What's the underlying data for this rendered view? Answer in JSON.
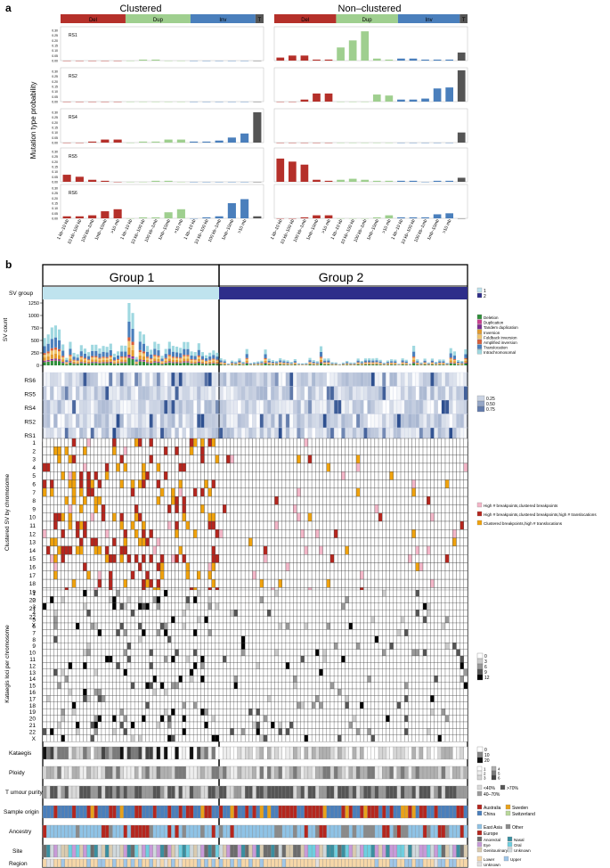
{
  "panel_a": {
    "letter": "a",
    "group_titles": [
      "Clustered",
      "Non–clustered"
    ],
    "type_bands": [
      {
        "label": "Del",
        "color": "#b5302a"
      },
      {
        "label": "Dup",
        "color": "#9fcf8f"
      },
      {
        "label": "Inv",
        "color": "#4a7fbc"
      },
      {
        "label": "T",
        "color": "#555555"
      }
    ],
    "ylabel": "Mutation type probability",
    "size_bins": [
      "1 kb–10 kb",
      "10 kb–100 kb",
      "100 kb–1mb",
      "1mb–10mb",
      ">10 mb"
    ],
    "yticks": [
      "0.00",
      "0.05",
      "0.10",
      "0.15",
      "0.20",
      "0.25",
      "0.30"
    ]
  },
  "chart_data": [
    {
      "type": "bar",
      "title": "",
      "ylabel": "Mutation type probability",
      "ylim": [
        0,
        0.3
      ],
      "categories": [
        "Clustered Del 1 kb–10 kb",
        "Clustered Del 10 kb–100 kb",
        "Clustered Del 100 kb–1mb",
        "Clustered Del 1mb–10mb",
        "Clustered Del >10 mb",
        "Clustered Dup 1 kb–10 kb",
        "Clustered Dup 10 kb–100 kb",
        "Clustered Dup 100 kb–1mb",
        "Clustered Dup 1mb–10mb",
        "Clustered Dup >10 mb",
        "Clustered Inv 1 kb–10 kb",
        "Clustered Inv 10 kb–100 kb",
        "Clustered Inv 100 kb–1mb",
        "Clustered Inv 1mb–10mb",
        "Clustered Inv >10 mb",
        "Clustered T",
        "Non–clustered Del 1 kb–10 kb",
        "Non–clustered Del 10 kb–100 kb",
        "Non–clustered Del 100 kb–1mb",
        "Non–clustered Del 1mb–10mb",
        "Non–clustered Del >10 mb",
        "Non–clustered Dup 1 kb–10 kb",
        "Non–clustered Dup 10 kb–100 kb",
        "Non–clustered Dup 100 kb–1mb",
        "Non–clustered Dup 1mb–10mb",
        "Non–clustered Dup >10 mb",
        "Non–clustered Inv 1 kb–10 kb",
        "Non–clustered Inv 10 kb–100 kb",
        "Non–clustered Inv 100 kb–1mb",
        "Non–clustered Inv 1mb–10mb",
        "Non–clustered Inv >10 mb",
        "Non–clustered T"
      ],
      "series": [
        {
          "name": "RS1",
          "values": [
            0,
            0,
            0,
            0,
            0,
            0,
            0.01,
            0.01,
            0,
            0,
            0,
            0,
            0,
            0,
            0,
            0,
            0.03,
            0.05,
            0.05,
            0.01,
            0.01,
            0.13,
            0.2,
            0.29,
            0.02,
            0.01,
            0.02,
            0.02,
            0.01,
            0.01,
            0.01,
            0.08
          ]
        },
        {
          "name": "RS2",
          "values": [
            0,
            0,
            0,
            0,
            0,
            0,
            0,
            0,
            0,
            0,
            0,
            0,
            0,
            0,
            0,
            0,
            0,
            0,
            0.02,
            0.08,
            0.08,
            0,
            0,
            0,
            0.07,
            0.06,
            0.02,
            0.02,
            0.03,
            0.13,
            0.14,
            0.31
          ]
        },
        {
          "name": "RS4",
          "values": [
            0,
            0,
            0.01,
            0.03,
            0.03,
            0,
            0.01,
            0.01,
            0.03,
            0.03,
            0.01,
            0.01,
            0.02,
            0.05,
            0.09,
            0.3,
            0,
            0,
            0,
            0,
            0,
            0,
            0,
            0,
            0,
            0,
            0,
            0,
            0,
            0,
            0,
            0.1
          ]
        },
        {
          "name": "RS5",
          "values": [
            0.07,
            0.05,
            0.02,
            0.01,
            0,
            0,
            0,
            0.01,
            0.01,
            0,
            0,
            0,
            0,
            0,
            0,
            0,
            0.23,
            0.2,
            0.17,
            0.02,
            0.01,
            0.02,
            0.03,
            0.02,
            0.01,
            0.01,
            0.01,
            0.01,
            0,
            0.01,
            0.01,
            0.04
          ]
        },
        {
          "name": "RS6",
          "values": [
            0.02,
            0.02,
            0.03,
            0.07,
            0.09,
            0,
            0.01,
            0.01,
            0.06,
            0.09,
            0,
            0.01,
            0.02,
            0.15,
            0.19,
            0.02,
            0,
            0,
            0.01,
            0.03,
            0.03,
            0,
            0,
            0,
            0.01,
            0.03,
            0.01,
            0.01,
            0.01,
            0.04,
            0.05,
            0
          ]
        }
      ]
    }
  ],
  "panel_b": {
    "letter": "b",
    "group_labels": [
      "Group 1",
      "Group 2"
    ],
    "row_labels": {
      "sv_group": "SV group",
      "sv_count": "SV count",
      "clustered_sv": "Clustered SV by chromosome",
      "kataegis_loci": "Kataegis loci per chromosome",
      "kataegis": "Kataegis",
      "ploidy": "Ploidy",
      "purity": "T umour purity",
      "sample_origin": "Sample origin",
      "ancestry": "Ancestry",
      "site": "Site",
      "region": "Region"
    },
    "sv_count_ticks": [
      "0",
      "250",
      "500",
      "750",
      "1000",
      "1250"
    ],
    "signatures": [
      "RS6",
      "RS5",
      "RS4",
      "RS2",
      "RS1"
    ],
    "chromosomes": [
      "1",
      "2",
      "3",
      "4",
      "5",
      "6",
      "7",
      "8",
      "9",
      "10",
      "11",
      "12",
      "13",
      "14",
      "15",
      "16",
      "17",
      "18",
      "19",
      "20",
      "21",
      "22",
      "X"
    ],
    "legends": {
      "sv_group": [
        {
          "label": "1",
          "color": "#bfe3ee"
        },
        {
          "label": "2",
          "color": "#2e2e8a"
        }
      ],
      "sv_types": [
        {
          "label": "Deletion",
          "color": "#2f8f3a"
        },
        {
          "label": "Duplication",
          "color": "#c93f8f"
        },
        {
          "label": "Tandem duplication",
          "color": "#7b2a8f"
        },
        {
          "label": "Inversion",
          "color": "#e39b2e"
        },
        {
          "label": "Foldback inversion",
          "color": "#f0c36a"
        },
        {
          "label": "Amplified inversion",
          "color": "#d95f3a"
        },
        {
          "label": "Translocation",
          "color": "#4a7fbc"
        },
        {
          "label": "Intrachromosomal",
          "color": "#9fd8e0"
        }
      ],
      "signature_scale": [
        "0.25",
        "0.50",
        "0.75"
      ],
      "clustered": [
        {
          "label": "High # breakpoints,clustered breakpoints",
          "color": "#f4b6c8"
        },
        {
          "label": "High # breakpoints,clustered breakpoints,high # translocations",
          "color": "#b5261e"
        },
        {
          "label": "Clustered breakpoints,high # translocations",
          "color": "#f0a20c"
        }
      ],
      "kataegis_loci_scale": [
        "0",
        "3",
        "6",
        "9",
        "12"
      ],
      "kataegis_scale": [
        "0",
        "10",
        "20"
      ],
      "ploidy": [
        "1",
        "2",
        "3",
        "4",
        "5",
        "6"
      ],
      "purity": [
        {
          "label": "<40%",
          "color": "#d9d9d9"
        },
        {
          "label": ">70%",
          "color": "#555555"
        },
        {
          "label": "40–70%",
          "color": "#9a9a9a"
        }
      ],
      "sample_origin": [
        {
          "label": "Australia",
          "color": "#b5261e"
        },
        {
          "label": "Sweden",
          "color": "#e8a21a"
        },
        {
          "label": "China",
          "color": "#4a7fbc"
        },
        {
          "label": "Switzerland",
          "color": "#b9d89a"
        }
      ],
      "ancestry": [
        {
          "label": "East Asia",
          "color": "#8fc3e6"
        },
        {
          "label": "Other",
          "color": "#8a8a8a"
        },
        {
          "label": "Europe",
          "color": "#b5261e"
        }
      ],
      "site": [
        {
          "label": "Anorectal",
          "color": "#6c6c6c"
        },
        {
          "label": "Nasal",
          "color": "#3a8fa0"
        },
        {
          "label": "Eye",
          "color": "#c89ad8"
        },
        {
          "label": "Oral",
          "color": "#6ecfe0"
        },
        {
          "label": "Genitourinary",
          "color": "#d9cbb0"
        },
        {
          "label": "Unknown",
          "color": "#cfd8dc"
        }
      ],
      "region": [
        {
          "label": "Lower",
          "color": "#f6d7a8"
        },
        {
          "label": "Upper",
          "color": "#9fc6e8"
        },
        {
          "label": "Unknown",
          "color": "#e0e0e0"
        }
      ]
    },
    "colors": {
      "group1": "#bfe3ee",
      "group2": "#2e2e8a",
      "sig_high": "#2d4f8f",
      "cluster_pink": "#f4b6c8",
      "cluster_red": "#b5261e",
      "cluster_orange": "#f0a20c"
    }
  }
}
